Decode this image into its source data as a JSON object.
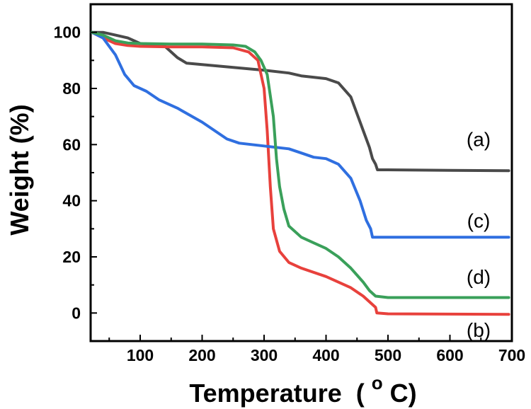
{
  "chart_data": {
    "type": "line",
    "xlabel": "Temperature",
    "xlabel_unit_prefix": "(",
    "xlabel_unit_sup": "o",
    "xlabel_unit_main": "C)",
    "ylabel": "Weight (%)",
    "xlim": [
      20,
      700
    ],
    "ylim": [
      -10,
      110
    ],
    "xticks": [
      100,
      200,
      300,
      400,
      500,
      600,
      700
    ],
    "yticks": [
      0,
      20,
      40,
      60,
      80,
      100
    ],
    "grid": false,
    "legend": "none",
    "series": [
      {
        "label": "(a)",
        "color": "#4a4a4a",
        "points": [
          [
            22,
            100
          ],
          [
            40,
            100
          ],
          [
            60,
            99
          ],
          [
            80,
            98
          ],
          [
            100,
            96
          ],
          [
            120,
            95.5
          ],
          [
            140,
            95
          ],
          [
            160,
            91
          ],
          [
            175,
            89
          ],
          [
            200,
            88.5
          ],
          [
            250,
            87.5
          ],
          [
            300,
            86.5
          ],
          [
            340,
            85.5
          ],
          [
            360,
            84.5
          ],
          [
            400,
            83.5
          ],
          [
            420,
            82
          ],
          [
            440,
            77
          ],
          [
            460,
            65
          ],
          [
            470,
            59
          ],
          [
            475,
            55
          ],
          [
            480,
            53
          ],
          [
            483,
            51
          ],
          [
            500,
            51
          ],
          [
            600,
            50.8
          ],
          [
            695,
            50.7
          ]
        ]
      },
      {
        "label": "(b)",
        "color": "#e8413c",
        "points": [
          [
            22,
            100
          ],
          [
            40,
            98
          ],
          [
            60,
            96
          ],
          [
            80,
            95.3
          ],
          [
            100,
            95
          ],
          [
            150,
            94.8
          ],
          [
            200,
            94.8
          ],
          [
            250,
            94.5
          ],
          [
            275,
            93
          ],
          [
            290,
            90
          ],
          [
            300,
            80
          ],
          [
            305,
            65
          ],
          [
            310,
            45
          ],
          [
            315,
            30
          ],
          [
            325,
            22
          ],
          [
            340,
            18
          ],
          [
            360,
            16
          ],
          [
            400,
            13
          ],
          [
            440,
            9
          ],
          [
            460,
            6
          ],
          [
            475,
            3
          ],
          [
            480,
            2
          ],
          [
            482,
            0
          ],
          [
            500,
            -0.3
          ],
          [
            600,
            -0.4
          ],
          [
            695,
            -0.5
          ]
        ]
      },
      {
        "label": "(c)",
        "color": "#2f6fe0",
        "points": [
          [
            22,
            100
          ],
          [
            40,
            98
          ],
          [
            60,
            92
          ],
          [
            75,
            85
          ],
          [
            90,
            81
          ],
          [
            110,
            79
          ],
          [
            130,
            76
          ],
          [
            160,
            73
          ],
          [
            200,
            68
          ],
          [
            240,
            62
          ],
          [
            260,
            60.5
          ],
          [
            300,
            59.5
          ],
          [
            340,
            58.5
          ],
          [
            360,
            57
          ],
          [
            380,
            55.5
          ],
          [
            400,
            55
          ],
          [
            420,
            53
          ],
          [
            440,
            48
          ],
          [
            455,
            40
          ],
          [
            465,
            33
          ],
          [
            472,
            30
          ],
          [
            475,
            27
          ],
          [
            500,
            27
          ],
          [
            600,
            27
          ],
          [
            695,
            27
          ]
        ]
      },
      {
        "label": "(d)",
        "color": "#3aa05a",
        "points": [
          [
            22,
            100
          ],
          [
            40,
            99
          ],
          [
            60,
            97
          ],
          [
            80,
            96.2
          ],
          [
            100,
            96
          ],
          [
            150,
            95.8
          ],
          [
            200,
            95.8
          ],
          [
            250,
            95.5
          ],
          [
            270,
            95
          ],
          [
            285,
            93
          ],
          [
            295,
            90
          ],
          [
            305,
            85
          ],
          [
            315,
            70
          ],
          [
            320,
            55
          ],
          [
            325,
            45
          ],
          [
            332,
            37
          ],
          [
            340,
            31
          ],
          [
            360,
            27
          ],
          [
            380,
            25
          ],
          [
            400,
            23
          ],
          [
            420,
            20
          ],
          [
            440,
            16
          ],
          [
            460,
            11
          ],
          [
            470,
            8
          ],
          [
            480,
            6
          ],
          [
            500,
            5.5
          ],
          [
            600,
            5.5
          ],
          [
            695,
            5.5
          ]
        ]
      }
    ]
  }
}
